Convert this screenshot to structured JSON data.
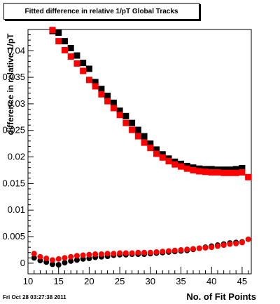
{
  "header": {
    "title": "Fitted difference in relative 1/pT  Global Tracks"
  },
  "footer": {
    "timestamp": "Fri Oct 28 03:27:38 2011"
  },
  "colors": {
    "series_black": "#000000",
    "series_red": "#ff0000",
    "background": "#ffffff"
  },
  "chart_data": {
    "type": "scatter",
    "title": "Fitted difference in relative 1/pT  Global Tracks",
    "xlabel": "No. of Fit Points",
    "ylabel": "difference in relative 1/pT",
    "xlim": [
      10,
      46.5
    ],
    "ylim": [
      -0.002,
      0.044
    ],
    "x_ticks": [
      10,
      15,
      20,
      25,
      30,
      35,
      40,
      45
    ],
    "x_tick_labels": [
      "10",
      "15",
      "20",
      "25",
      "30",
      "35",
      "40",
      "45"
    ],
    "y_ticks": [
      0,
      0.005,
      0.01,
      0.015,
      0.02,
      0.025,
      0.03,
      0.035,
      0.04
    ],
    "y_tick_labels": [
      "0",
      "0.005",
      "0.01",
      "0.015",
      "0.02",
      "0.025",
      "0.03",
      "0.035",
      "0.04"
    ],
    "grid": false,
    "legend": "none",
    "series": [
      {
        "marker": "square",
        "color": "#000000",
        "x": [
          14,
          15,
          16,
          17,
          18,
          19,
          20,
          21,
          22,
          23,
          24,
          25,
          26,
          27,
          28,
          29,
          30,
          31,
          32,
          33,
          34,
          35,
          36,
          37,
          38,
          39,
          40,
          41,
          42,
          43,
          44,
          45
        ],
        "y": [
          0.0437,
          0.0434,
          0.0418,
          0.0405,
          0.0391,
          0.0377,
          0.0366,
          0.0341,
          0.0328,
          0.0315,
          0.0302,
          0.0287,
          0.0277,
          0.0264,
          0.0251,
          0.0239,
          0.0225,
          0.0214,
          0.0205,
          0.0197,
          0.0191,
          0.0187,
          0.0183,
          0.018,
          0.0178,
          0.0177,
          0.0177,
          0.0176,
          0.0176,
          0.0176,
          0.0177,
          0.0179
        ]
      },
      {
        "marker": "square",
        "color": "#ff0000",
        "x": [
          14,
          15,
          16,
          17,
          18,
          19,
          20,
          21,
          22,
          23,
          24,
          25,
          26,
          27,
          28,
          29,
          30,
          31,
          32,
          33,
          34,
          35,
          36,
          37,
          38,
          39,
          40,
          41,
          42,
          43,
          44,
          45,
          46
        ],
        "y": [
          0.0439,
          0.0418,
          0.0401,
          0.0389,
          0.0376,
          0.0362,
          0.0345,
          0.0333,
          0.0318,
          0.0305,
          0.0292,
          0.0279,
          0.0264,
          0.0251,
          0.0239,
          0.0227,
          0.0217,
          0.0206,
          0.0199,
          0.0192,
          0.0186,
          0.0182,
          0.0178,
          0.0175,
          0.0173,
          0.0172,
          0.0171,
          0.0171,
          0.017,
          0.017,
          0.017,
          0.0171,
          0.0162
        ]
      },
      {
        "marker": "circle",
        "color": "#000000",
        "x": [
          11,
          12,
          13,
          14,
          15,
          16,
          17,
          18,
          19,
          20,
          21,
          22,
          23,
          24,
          25,
          26,
          27,
          28,
          29,
          30,
          31,
          32,
          33,
          34,
          35,
          36,
          37,
          38,
          39,
          40,
          41,
          42,
          43,
          44,
          45
        ],
        "y": [
          0.001,
          0.0005,
          0.0002,
          -0.0002,
          -0.0003,
          0.0001,
          0.0004,
          0.0006,
          0.0008,
          0.0009,
          0.0011,
          0.0012,
          0.0013,
          0.0015,
          0.0016,
          0.0016,
          0.0017,
          0.0017,
          0.0017,
          0.0018,
          0.0019,
          0.002,
          0.0021,
          0.0022,
          0.0023,
          0.0024,
          0.0026,
          0.0028,
          0.003,
          0.0032,
          0.0034,
          0.0036,
          0.0038,
          0.0039,
          0.004
        ]
      },
      {
        "marker": "circle",
        "color": "#ff0000",
        "x": [
          11,
          12,
          13,
          14,
          15,
          16,
          17,
          18,
          19,
          20,
          21,
          22,
          23,
          24,
          25,
          26,
          27,
          28,
          29,
          30,
          31,
          32,
          33,
          34,
          35,
          36,
          37,
          38,
          39,
          40,
          41,
          42,
          43,
          44,
          45,
          46
        ],
        "y": [
          0.0018,
          0.0012,
          0.0009,
          0.0006,
          0.0008,
          0.001,
          0.0012,
          0.0014,
          0.0015,
          0.0016,
          0.0017,
          0.0017,
          0.0018,
          0.0018,
          0.0019,
          0.0019,
          0.0019,
          0.002,
          0.002,
          0.002,
          0.0021,
          0.0022,
          0.0023,
          0.0024,
          0.0025,
          0.0026,
          0.0027,
          0.0028,
          0.0029,
          0.003,
          0.0032,
          0.0034,
          0.0036,
          0.0037,
          0.0039,
          0.0045
        ]
      }
    ]
  }
}
